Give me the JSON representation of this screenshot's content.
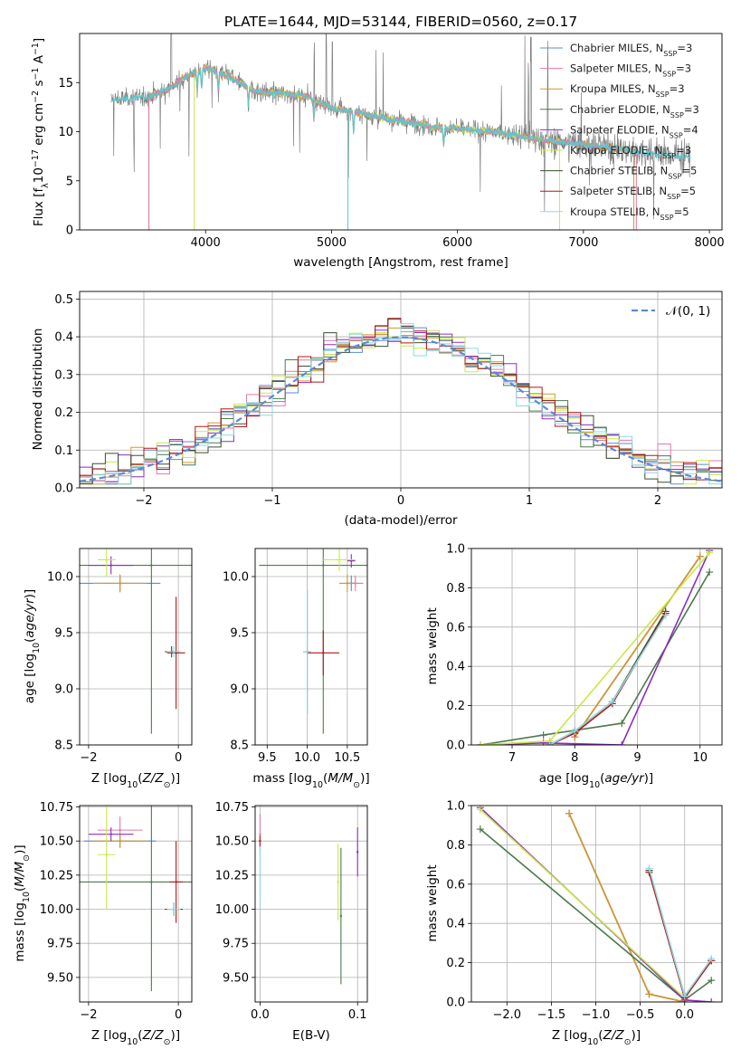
{
  "figure": {
    "title": "PLATE=1644, MJD=53144, FIBERID=0560, z=0.17"
  },
  "colors": {
    "Chabrier MILES": "#5b8ad6",
    "Salpeter MILES": "#e07aa8",
    "Kroupa MILES": "#d09a2a",
    "Chabrier ELODIE": "#4d7a4d",
    "Salpeter ELODIE": "#8b2fc2",
    "Kroupa ELODIE": "#c8e84a",
    "Chabrier STELIB": "#3a4f30",
    "Salpeter STELIB": "#b01818",
    "Kroupa STELIB": "#8fd8e0",
    "data": "#808080",
    "fit": "#5bc8d0",
    "normal": "#5b8ad6"
  },
  "chart_data": [
    {
      "id": "spectrum",
      "type": "line",
      "title": "PLATE=1644, MJD=53144, FIBERID=0560, z=0.17",
      "xlabel": "wavelength [Angstrom, rest frame]",
      "ylabel": "Flux [f_λ 10^-17 erg cm^-2 s^-1 A^-1]",
      "xlim": [
        3000,
        8100
      ],
      "ylim": [
        0,
        20
      ],
      "xticks": [
        4000,
        5000,
        6000,
        7000,
        8000
      ],
      "yticks": [
        0,
        5,
        10,
        15
      ],
      "legend_position": "top-right",
      "legend": [
        {
          "name": "Chabrier MILES",
          "nssp": "3"
        },
        {
          "name": "Salpeter MILES",
          "nssp": "3"
        },
        {
          "name": "Kroupa MILES",
          "nssp": "3"
        },
        {
          "name": "Chabrier ELODIE",
          "nssp": "3"
        },
        {
          "name": "Salpeter ELODIE",
          "nssp": "4"
        },
        {
          "name": "Kroupa ELODIE",
          "nssp": "3"
        },
        {
          "name": "Chabrier STELIB",
          "nssp": "5"
        },
        {
          "name": "Salpeter STELIB",
          "nssp": "5"
        },
        {
          "name": "Kroupa STELIB",
          "nssp": "5"
        }
      ],
      "continuum": {
        "x": [
          3250,
          3400,
          3550,
          3700,
          3850,
          4000,
          4200,
          4400,
          4600,
          4800,
          5000,
          5200,
          5400,
          5600,
          5800,
          6000,
          6200,
          6400,
          6600,
          6800,
          7000,
          7200,
          7400,
          7600,
          7850
        ],
        "y": [
          13.2,
          13.4,
          13.6,
          14.3,
          15.6,
          16.6,
          15.5,
          14.1,
          13.9,
          13.6,
          12.4,
          12.0,
          11.4,
          11.0,
          10.5,
          10.3,
          10.1,
          9.8,
          9.3,
          9.0,
          8.7,
          8.4,
          8.0,
          7.7,
          7.4
        ]
      }
    },
    {
      "id": "residuals",
      "type": "histogram",
      "xlabel": "(data-model)/error",
      "ylabel": "Normed distribution",
      "xlim": [
        -2.5,
        2.5
      ],
      "ylim": [
        0,
        0.52
      ],
      "xticks": [
        -2,
        -1,
        0,
        1,
        2
      ],
      "yticks": [
        0.0,
        0.1,
        0.2,
        0.3,
        0.4,
        0.5
      ],
      "legend_position": "top-right",
      "normal_label": "𝒩(0, 1)",
      "bin_width": 0.1
    },
    {
      "id": "age-vs-Z",
      "type": "scatter",
      "xlabel": "Z [log10(Z/Z☉)]",
      "ylabel": "age  [log10(age/yr)]",
      "xlim": [
        -2.2,
        0.3
      ],
      "ylim": [
        8.5,
        10.25
      ],
      "xticks": [
        -2,
        0
      ],
      "yticks": [
        8.5,
        9.0,
        9.5,
        10.0
      ],
      "points": [
        {
          "model": "Chabrier MILES",
          "x": -1.3,
          "y": 9.94,
          "xerr": 0.9,
          "yerr": 0.07
        },
        {
          "model": "Salpeter MILES",
          "x": -1.3,
          "y": 9.94,
          "xerr": 0.5,
          "yerr": 0.07
        },
        {
          "model": "Kroupa MILES",
          "x": -1.3,
          "y": 9.94,
          "xerr": 0.6,
          "yerr": 0.08
        },
        {
          "model": "Chabrier ELODIE",
          "x": -0.6,
          "y": 10.1,
          "xerr": 2.2,
          "yerr": 1.5
        },
        {
          "model": "Salpeter ELODIE",
          "x": -1.5,
          "y": 10.1,
          "xerr": 0.5,
          "yerr": 0.08
        },
        {
          "model": "Kroupa ELODIE",
          "x": -1.6,
          "y": 10.15,
          "xerr": 0.2,
          "yerr": 0.15
        },
        {
          "model": "Chabrier STELIB",
          "x": -0.15,
          "y": 9.33,
          "xerr": 0.15,
          "yerr": 0.05
        },
        {
          "model": "Salpeter STELIB",
          "x": -0.05,
          "y": 9.32,
          "xerr": 0.2,
          "yerr": 0.5
        },
        {
          "model": "Kroupa STELIB",
          "x": -0.1,
          "y": 9.33,
          "xerr": 0.15,
          "yerr": 0.05
        }
      ]
    },
    {
      "id": "age-vs-mass",
      "type": "scatter",
      "xlabel": "mass [log10(M/M☉)]",
      "ylabel": "",
      "xlim": [
        9.35,
        10.75
      ],
      "ylim": [
        8.5,
        10.25
      ],
      "xticks": [
        9.5,
        10.0,
        10.5
      ],
      "yticks": [
        8.5,
        9.0,
        9.5,
        10.0
      ],
      "points": [
        {
          "model": "Chabrier MILES",
          "x": 10.55,
          "y": 9.94,
          "xerr": 0.1,
          "yerr": 0.07
        },
        {
          "model": "Salpeter MILES",
          "x": 10.6,
          "y": 9.94,
          "xerr": 0.1,
          "yerr": 0.07
        },
        {
          "model": "Kroupa MILES",
          "x": 10.5,
          "y": 9.94,
          "xerr": 0.1,
          "yerr": 0.08
        },
        {
          "model": "Chabrier ELODIE",
          "x": 10.2,
          "y": 10.1,
          "xerr": 0.8,
          "yerr": 1.5
        },
        {
          "model": "Salpeter ELODIE",
          "x": 10.55,
          "y": 10.14,
          "xerr": 0.05,
          "yerr": 0.06
        },
        {
          "model": "Kroupa ELODIE",
          "x": 10.4,
          "y": 10.15,
          "xerr": 0.2,
          "yerr": 0.1
        },
        {
          "model": "Chabrier STELIB",
          "x": 10.0,
          "y": 9.33,
          "xerr": 0.05,
          "yerr": 0.55
        },
        {
          "model": "Salpeter STELIB",
          "x": 10.2,
          "y": 9.32,
          "xerr": 0.2,
          "yerr": 0.2
        },
        {
          "model": "Kroupa STELIB",
          "x": 10.0,
          "y": 9.33,
          "xerr": 0.05,
          "yerr": 0.55
        }
      ]
    },
    {
      "id": "weight-vs-age",
      "type": "line",
      "xlabel": "age  [log10(age/yr)]",
      "ylabel": "mass weight",
      "xlim": [
        6.35,
        10.35
      ],
      "ylim": [
        0,
        1.0
      ],
      "xticks": [
        7,
        8,
        9,
        10
      ],
      "yticks": [
        0.0,
        0.2,
        0.4,
        0.6,
        0.8,
        1.0
      ],
      "series": [
        {
          "model": "Chabrier MILES",
          "x": [
            8.0,
            10.0
          ],
          "y": [
            0.04,
            0.96
          ]
        },
        {
          "model": "Salpeter MILES",
          "x": [
            8.0,
            10.0
          ],
          "y": [
            0.04,
            0.96
          ]
        },
        {
          "model": "Kroupa MILES",
          "x": [
            8.0,
            10.0
          ],
          "y": [
            0.04,
            0.96
          ]
        },
        {
          "model": "Chabrier ELODIE",
          "x": [
            6.5,
            7.5,
            8.75,
            10.15
          ],
          "y": [
            0.0,
            0.05,
            0.11,
            0.88
          ]
        },
        {
          "model": "Salpeter ELODIE",
          "x": [
            6.5,
            7.5,
            8.75,
            10.15
          ],
          "y": [
            0.0,
            0.01,
            0.0,
            0.99
          ]
        },
        {
          "model": "Kroupa ELODIE",
          "x": [
            6.5,
            7.6,
            10.15
          ],
          "y": [
            0.0,
            0.02,
            0.98
          ]
        },
        {
          "model": "Chabrier STELIB",
          "x": [
            7.6,
            8.0,
            8.6,
            9.45
          ],
          "y": [
            0.0,
            0.07,
            0.22,
            0.68
          ]
        },
        {
          "model": "Salpeter STELIB",
          "x": [
            7.6,
            8.0,
            8.6,
            9.45
          ],
          "y": [
            0.0,
            0.06,
            0.21,
            0.67
          ]
        },
        {
          "model": "Kroupa STELIB",
          "x": [
            7.6,
            8.0,
            8.6,
            9.45
          ],
          "y": [
            0.0,
            0.07,
            0.22,
            0.66
          ]
        }
      ]
    },
    {
      "id": "mass-vs-Z",
      "type": "scatter",
      "xlabel": "Z [log10(Z/Z☉)]",
      "ylabel": "mass [log10(M/M☉)]",
      "xlim": [
        -2.2,
        0.3
      ],
      "ylim": [
        9.32,
        10.76
      ],
      "xticks": [
        -2,
        0
      ],
      "yticks": [
        9.5,
        9.75,
        10.0,
        10.25,
        10.5,
        10.75
      ],
      "points": [
        {
          "model": "Chabrier MILES",
          "x": -1.3,
          "y": 10.5,
          "xerr": 0.8,
          "yerr": 0.05
        },
        {
          "model": "Salpeter MILES",
          "x": -1.3,
          "y": 10.58,
          "xerr": 0.5,
          "yerr": 0.1
        },
        {
          "model": "Kroupa MILES",
          "x": -1.3,
          "y": 10.5,
          "xerr": 0.6,
          "yerr": 0.05
        },
        {
          "model": "Chabrier ELODIE",
          "x": -0.6,
          "y": 10.2,
          "xerr": 2.2,
          "yerr": 0.8
        },
        {
          "model": "Salpeter ELODIE",
          "x": -1.5,
          "y": 10.55,
          "xerr": 0.5,
          "yerr": 0.05
        },
        {
          "model": "Kroupa ELODIE",
          "x": -1.6,
          "y": 10.4,
          "xerr": 0.2,
          "yerr": 0.4
        },
        {
          "model": "Chabrier STELIB",
          "x": -0.1,
          "y": 10.0,
          "xerr": 0.2,
          "yerr": 0.05
        },
        {
          "model": "Salpeter STELIB",
          "x": -0.05,
          "y": 10.2,
          "xerr": 0.15,
          "yerr": 0.3
        },
        {
          "model": "Kroupa STELIB",
          "x": -0.1,
          "y": 10.0,
          "xerr": 0.15,
          "yerr": 0.05
        }
      ]
    },
    {
      "id": "mass-vs-EBV",
      "type": "scatter",
      "xlabel": "E(B-V)",
      "ylabel": "",
      "xlim": [
        -0.005,
        0.11
      ],
      "ylim": [
        9.32,
        10.76
      ],
      "xticks": [
        0.0,
        0.1
      ],
      "yticks": [
        9.5,
        9.75,
        10.0,
        10.25,
        10.5,
        10.75
      ],
      "points": [
        {
          "model": "Salpeter MILES",
          "x": 0.0,
          "y": 10.55,
          "xerr": 0.0,
          "yerr": 0.15
        },
        {
          "model": "Kroupa STELIB",
          "x": 0.0,
          "y": 10.25,
          "xerr": 0.0,
          "yerr": 0.25
        },
        {
          "model": "Salpeter STELIB",
          "x": 0.0,
          "y": 10.5,
          "xerr": 0.0,
          "yerr": 0.04
        },
        {
          "model": "Kroupa ELODIE",
          "x": 0.08,
          "y": 10.2,
          "xerr": 0.0,
          "yerr": 0.28
        },
        {
          "model": "Chabrier ELODIE",
          "x": 0.083,
          "y": 9.95,
          "xerr": 0.0,
          "yerr": 0.5
        },
        {
          "model": "Salpeter ELODIE",
          "x": 0.1,
          "y": 10.42,
          "xerr": 0.0,
          "yerr": 0.18
        }
      ]
    },
    {
      "id": "weight-vs-Z",
      "type": "line",
      "xlabel": "Z [log10(Z/Z☉)]",
      "ylabel": "mass weight",
      "xlim": [
        -2.4,
        0.42
      ],
      "ylim": [
        0,
        1.0
      ],
      "xticks": [
        -2.0,
        -1.5,
        -1.0,
        -0.5,
        0.0
      ],
      "yticks": [
        0.0,
        0.2,
        0.4,
        0.6,
        0.8,
        1.0
      ],
      "series": [
        {
          "model": "Chabrier MILES",
          "x": [
            -1.3,
            -0.4,
            0.0
          ],
          "y": [
            0.96,
            0.04,
            0.0
          ]
        },
        {
          "model": "Salpeter MILES",
          "x": [
            -1.3,
            -0.4,
            0.0
          ],
          "y": [
            0.96,
            0.04,
            0.0
          ]
        },
        {
          "model": "Kroupa MILES",
          "x": [
            -1.3,
            -0.4,
            0.0
          ],
          "y": [
            0.96,
            0.04,
            0.0
          ]
        },
        {
          "model": "Chabrier ELODIE",
          "x": [
            -2.3,
            0.0,
            0.3
          ],
          "y": [
            0.88,
            0.01,
            0.11
          ]
        },
        {
          "model": "Salpeter ELODIE",
          "x": [
            -2.3,
            0.0,
            0.3
          ],
          "y": [
            0.99,
            0.01,
            0.0
          ]
        },
        {
          "model": "Kroupa ELODIE",
          "x": [
            -2.3,
            0.0
          ],
          "y": [
            0.98,
            0.02
          ]
        },
        {
          "model": "Chabrier STELIB",
          "x": [
            -0.4,
            0.0,
            0.3
          ],
          "y": [
            0.67,
            0.03,
            0.21
          ]
        },
        {
          "model": "Salpeter STELIB",
          "x": [
            -0.4,
            0.0,
            0.3
          ],
          "y": [
            0.66,
            0.02,
            0.21
          ]
        },
        {
          "model": "Kroupa STELIB",
          "x": [
            -0.4,
            0.0,
            0.3
          ],
          "y": [
            0.68,
            0.03,
            0.22
          ]
        }
      ]
    }
  ]
}
